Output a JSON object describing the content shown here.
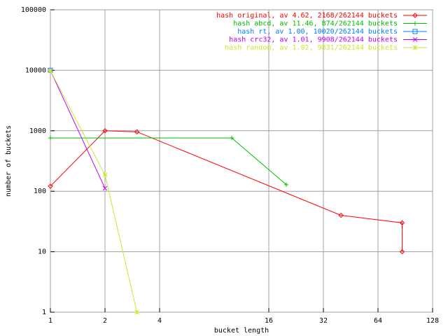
{
  "chart_data": {
    "type": "line",
    "xlabel": "bucket length",
    "ylabel": "number of buckets",
    "xlog": true,
    "ylog": true,
    "grid": true,
    "legend": "top-right",
    "xlim": [
      1,
      128
    ],
    "ylim": [
      1,
      100000
    ],
    "xticks": [
      1,
      2,
      4,
      16,
      32,
      64,
      128
    ],
    "yticks": [
      1,
      10,
      100,
      1000,
      10000,
      100000
    ],
    "series": [
      {
        "name": "hash original, av 4.62, 2168/262144 buckets",
        "color": "#ff0000",
        "marker": "diamond",
        "x": [
          1,
          2,
          3,
          40,
          87,
          87
        ],
        "values": [
          121,
          1000,
          960,
          40,
          30,
          10
        ]
      },
      {
        "name": "hash abcd, av 11.46, 874/262144 buckets",
        "color": "#00c000",
        "marker": "plus",
        "x": [
          1,
          10,
          20
        ],
        "values": [
          760,
          760,
          128
        ]
      },
      {
        "name": "hash rt, av 1.00, 10020/262144 buckets",
        "color": "#0080ff",
        "marker": "square",
        "x": [
          1
        ],
        "values": [
          10020
        ]
      },
      {
        "name": "hash crc32, av 1.01, 9908/262144 buckets",
        "color": "#c000ff",
        "marker": "cross",
        "x": [
          1,
          2
        ],
        "values": [
          9908,
          112
        ]
      },
      {
        "name": "hash random, av 1.02, 9831/262144 buckets",
        "color": "#c8e830",
        "marker": "star",
        "x": [
          1,
          2,
          3
        ],
        "values": [
          9831,
          186,
          1
        ]
      }
    ]
  }
}
